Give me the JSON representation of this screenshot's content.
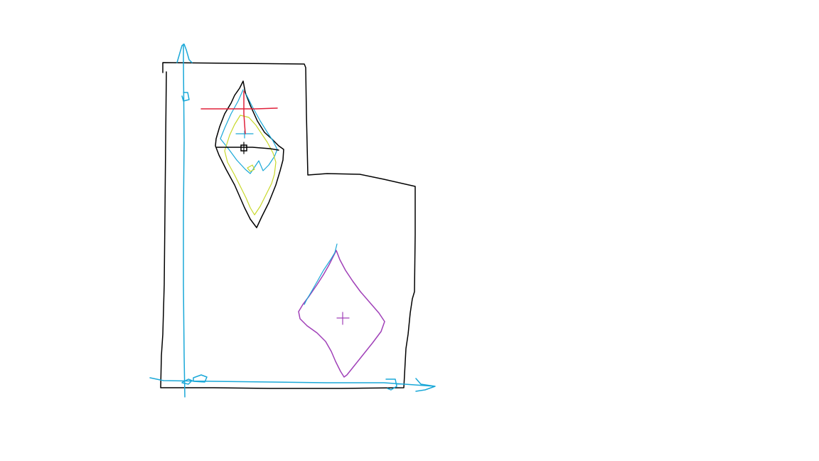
{
  "diagram": {
    "kind": "hand-drawn sketch",
    "colors": {
      "background": "#ffffff",
      "outline": "#000000",
      "axes": "#1aa8d8",
      "crosshair": "#e0203a",
      "inner_sketch": "#c8d82a",
      "lower_shape": "#a040b8",
      "lower_edge_highlight": "#1aa8d8"
    },
    "elements": [
      "page-outline",
      "y-axis-arrow",
      "x-axis-arrow",
      "upper-diamond",
      "upper-diamond-inner-sketch",
      "crosshair-marker",
      "pivot-square",
      "lower-diamond",
      "lower-diamond-cross"
    ],
    "labels_shown": false
  }
}
